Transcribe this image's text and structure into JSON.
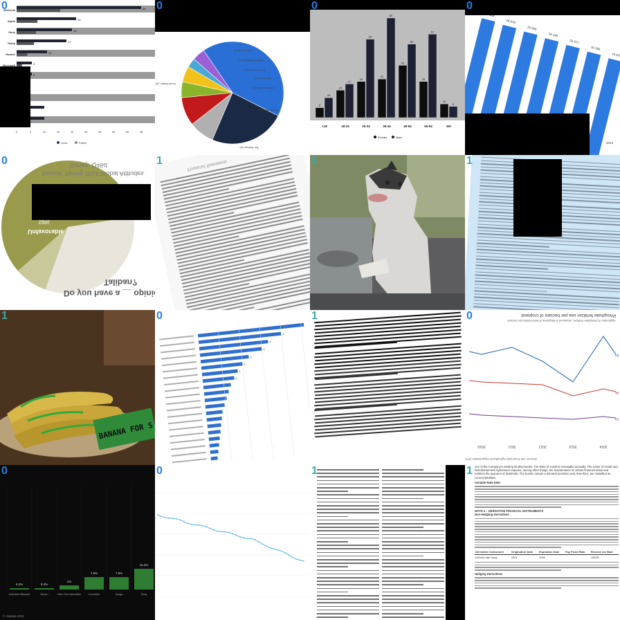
{
  "badges": [
    "0",
    "0",
    "0",
    "0",
    "0",
    "1",
    "1",
    "1",
    "1",
    "0",
    "1",
    "0",
    "0",
    "0",
    "1",
    "1"
  ],
  "tile1": {
    "legend": [
      "Lines",
      "Fabric"
    ],
    "y_labels": [
      "Motorola",
      "Apple",
      "Sony",
      "Nokia",
      "Huawei",
      "Microsoft",
      "",
      "",
      "",
      "",
      "Lenovo"
    ],
    "x_ticks": [
      "0",
      "5",
      "10",
      "15",
      "20",
      "25",
      "30",
      "35",
      "40",
      "45"
    ],
    "values": [
      "44",
      "19",
      "18",
      "17",
      "10",
      "5",
      "5",
      "2",
      "1",
      "",
      ""
    ],
    "values2": [
      "",
      "",
      "",
      "",
      "",
      "",
      "",
      "",
      "",
      "",
      ""
    ]
  },
  "tile2": {
    "labels": [
      "Hard to say (5)",
      "Neither Milwaukee (1)",
      "Robert Barrett (4)",
      "Marquette (4)",
      "Kathleen Falk (10)",
      "Tom Barrett (14)",
      "Tim Sullivan (6)",
      "Scott Walker (42)"
    ]
  },
  "tile3": {
    "categories": [
      "<18",
      "18-24",
      "25-34",
      "35-44",
      "45-54",
      "55-64",
      "65+"
    ],
    "female": [
      8,
      22,
      29,
      31,
      42,
      29,
      11
    ],
    "male": [
      16,
      27,
      63,
      80,
      59,
      67,
      9
    ],
    "legend": [
      "Female",
      "Male"
    ]
  },
  "tile4": {
    "values": [
      "27 908",
      "28 618",
      "26 605",
      "26 148",
      "25 617",
      "25 285",
      "24 875"
    ],
    "x_ticks": [
      "2014"
    ]
  },
  "tile5": {
    "title_a": "Do you have a __ opinion of the",
    "title_b": "Taliban?",
    "unfav_label": "Unfavorable",
    "unfav_value": "59%",
    "fav_label": "Favorable",
    "fav_value": "8%",
    "source_a": "Source: Spring 2014 Global Attitudes",
    "source_b": "Survey. Q46d."
  },
  "tile6": {
    "heading": "Financial Statements"
  },
  "tile9": {
    "sign_text": "BANANA FOR S"
  },
  "tile10": {
    "values": [
      "200",
      "1",
      "1",
      "1",
      "1",
      "1",
      "1",
      "1"
    ]
  },
  "tile12": {
    "title": "Phosphate fertilizer use per hectare of cropland",
    "subtitle": "Application of phosphate fertilizer, measured in kilograms of total nutrient per hectare",
    "x_ticks": [
      "2010",
      "2011",
      "2012",
      "2013",
      "2014"
    ],
    "end_labels": [
      "Ec",
      "Ar",
      "Ur"
    ],
    "source": "Source: UN Food and Agricultural Organization (FAO)"
  },
  "tile13": {
    "labels": [
      "Activision Blizzard",
      "Nexon",
      "Take-Two Interactive",
      "Lucasfilm",
      "Zynga",
      "Sony"
    ],
    "values": [
      "0.3%",
      "0.3%",
      "1%",
      "7.9%",
      "7.9%",
      "15.3%"
    ],
    "copyright": "© Statista 2021"
  },
  "tile16": {
    "intro": "one of the Company's existing lending banks. The letter of credit is renewable annually. The Letter of Credit and Reimbursement Agreement requires, among other things, the maintenance of certain financial ratios and restricts the payment of dividends. The bonds contain a demand provision and, therefore, are classified as current liabilities.",
    "h1": "Variable-Rate Debt",
    "h2": "NOTE 4 – DERIVATIVE FINANCIAL INSTRUMENTS",
    "h3": "Non-Hedging Derivatives",
    "table_header": [
      "Derivative Instrument",
      "Origination Date",
      "Expiration Date",
      "Pay Fixed Rate",
      "Receive var Rate"
    ],
    "table_row": [
      "Interest rate swap",
      "2001",
      "2006",
      "",
      "LIBOR"
    ],
    "h4": "Hedging Derivatives"
  }
}
